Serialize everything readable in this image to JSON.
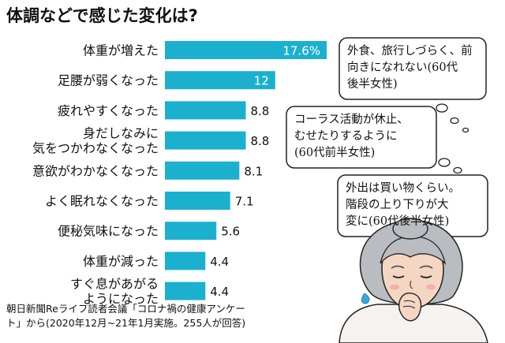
{
  "title": "体調などで感じた変化は?",
  "chart_data": {
    "type": "bar",
    "orientation": "horizontal",
    "categories": [
      [
        "体重が増えた"
      ],
      [
        "足腰が弱くなった"
      ],
      [
        "疲れやすくなった"
      ],
      [
        "身だしなみに",
        "気をつかわなくなった"
      ],
      [
        "意欲がわかなくなった"
      ],
      [
        "よく眠れなくなった"
      ],
      [
        "便秘気味になった"
      ],
      [
        "体重が減った"
      ],
      [
        "すぐ息があがる",
        "ようになった"
      ]
    ],
    "values": [
      17.6,
      12,
      8.8,
      8.8,
      8.1,
      7.1,
      5.6,
      4.4,
      4.4
    ],
    "value_labels": [
      "17.6%",
      "12",
      "8.8",
      "8.8",
      "8.1",
      "7.1",
      "5.6",
      "4.4",
      "4.4"
    ],
    "unit": "%",
    "xlim": [
      0,
      17.6
    ],
    "grid": false,
    "bar_color": "#1cb0cf"
  },
  "bubbles": [
    {
      "lines": [
        "外食、旅行しづらく、前",
        "向きになれない(60代",
        "後半女性)"
      ]
    },
    {
      "lines": [
        "コーラス活動が休止、",
        "むせたりするように",
        "(60代前半女性)"
      ]
    },
    {
      "lines": [
        "外出は買い物くらい。",
        "階段の上り下りが大",
        "変に(60代後半女性)"
      ]
    }
  ],
  "source": {
    "line1": "朝日新聞Reライフ読者会議「コロナ禍の健康アンケー",
    "line2": "ト」から(2020年12月~21年1月実施。255人が回答)"
  },
  "colors": {
    "bar": "#1cb0cf",
    "hair": "#b9bcc0",
    "skin": "#f4d6c3",
    "sweat": "#3aa7df",
    "cheek": "#f2a9a3"
  }
}
